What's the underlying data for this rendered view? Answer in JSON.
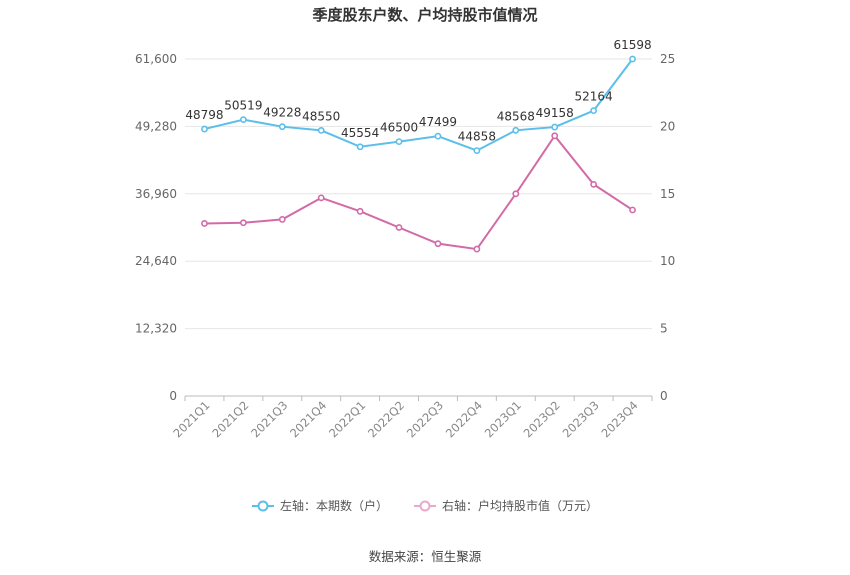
{
  "chart_data": {
    "type": "line",
    "title": "季度股东户数、户均持股市值情况",
    "categories": [
      "2021Q1",
      "2021Q2",
      "2021Q3",
      "2021Q4",
      "2022Q1",
      "2022Q2",
      "2022Q3",
      "2022Q4",
      "2023Q1",
      "2023Q2",
      "2023Q3",
      "2023Q4"
    ],
    "left_axis": {
      "ticks": [
        "0",
        "12,320",
        "24,640",
        "36,960",
        "49,280",
        "61,600"
      ],
      "ylim": [
        0,
        61600
      ]
    },
    "right_axis": {
      "ticks": [
        "0",
        "5",
        "10",
        "15",
        "20",
        "25"
      ],
      "ylim": [
        0,
        25
      ]
    },
    "series": [
      {
        "name": "左轴：本期数（户）",
        "axis": "left",
        "color": "#5bbfea",
        "values": [
          48798,
          50519,
          49228,
          48550,
          45554,
          46500,
          47499,
          44858,
          48568,
          49158,
          52164,
          61598
        ],
        "labels": [
          "48798",
          "50519",
          "49228",
          "48550",
          "45554",
          "46500",
          "47499",
          "44858",
          "48568",
          "49158",
          "52164",
          "61598"
        ]
      },
      {
        "name": "右轴：户均持股市值（万元）",
        "axis": "right",
        "color": "#d36aa8",
        "values": [
          12.8,
          12.85,
          13.1,
          14.7,
          13.7,
          12.5,
          11.3,
          10.9,
          15.0,
          19.3,
          15.7,
          13.8
        ]
      }
    ],
    "grid": true,
    "legend_position": "bottom"
  },
  "source": "数据来源：恒生聚源"
}
